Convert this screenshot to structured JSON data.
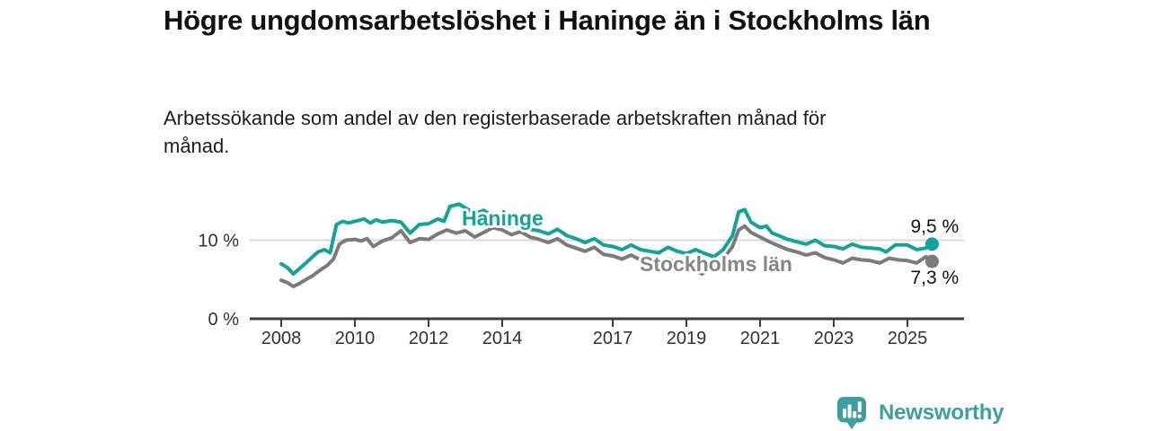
{
  "header": {
    "title": "Högre ungdomsarbetslöshet i Haninge än i Stockholms län",
    "subtitle": "Arbetssökande som andel av den registerbaserade arbetskraften månad för månad."
  },
  "chart_data": {
    "type": "line",
    "title": "Högre ungdomsarbetslöshet i Haninge än i Stockholms län",
    "subtitle": "Arbetssökande som andel av den registerbaserade arbetskraften månad för månad.",
    "unit": "%",
    "grid": "horizontal-only",
    "legend_position": "inline-labels",
    "x_axis": {
      "ticks": [
        2008,
        2010,
        2012,
        2014,
        2017,
        2019,
        2021,
        2023,
        2025
      ],
      "range": [
        2008,
        2025.7
      ]
    },
    "y_axis": {
      "ticks": [
        {
          "value": 0,
          "label": "0 %"
        },
        {
          "value": 10,
          "label": "10 %"
        }
      ],
      "range": [
        0,
        15
      ],
      "gridlines": [
        10
      ]
    },
    "colors": {
      "axis": "#3c3c3c",
      "gridline": "#d9d9d9",
      "tick_label": "#333333",
      "value_label": "#111111"
    },
    "series": [
      {
        "name": "Haninge",
        "color": "#15a297",
        "end_value": 9.5,
        "end_label": "9,5 %",
        "points": [
          [
            2008.0,
            7.0
          ],
          [
            2008.17,
            6.5
          ],
          [
            2008.33,
            5.7
          ],
          [
            2008.5,
            6.4
          ],
          [
            2008.67,
            7.1
          ],
          [
            2008.83,
            7.8
          ],
          [
            2009.0,
            8.5
          ],
          [
            2009.17,
            8.8
          ],
          [
            2009.33,
            8.4
          ],
          [
            2009.5,
            12.0
          ],
          [
            2009.67,
            12.4
          ],
          [
            2009.83,
            12.2
          ],
          [
            2010.0,
            12.4
          ],
          [
            2010.25,
            12.7
          ],
          [
            2010.42,
            12.2
          ],
          [
            2010.58,
            12.6
          ],
          [
            2010.75,
            12.3
          ],
          [
            2011.0,
            12.5
          ],
          [
            2011.25,
            12.3
          ],
          [
            2011.5,
            10.9
          ],
          [
            2011.75,
            12.0
          ],
          [
            2012.0,
            12.1
          ],
          [
            2012.25,
            12.7
          ],
          [
            2012.42,
            12.4
          ],
          [
            2012.58,
            14.3
          ],
          [
            2012.83,
            14.6
          ],
          [
            2013.0,
            14.1
          ],
          [
            2013.25,
            13.4
          ],
          [
            2013.5,
            13.8
          ],
          [
            2013.75,
            13.0
          ],
          [
            2014.0,
            12.4
          ],
          [
            2014.25,
            11.8
          ],
          [
            2014.5,
            12.2
          ],
          [
            2014.75,
            11.4
          ],
          [
            2015.0,
            11.2
          ],
          [
            2015.25,
            10.8
          ],
          [
            2015.5,
            11.4
          ],
          [
            2015.75,
            10.6
          ],
          [
            2016.0,
            10.2
          ],
          [
            2016.25,
            9.7
          ],
          [
            2016.5,
            10.2
          ],
          [
            2016.75,
            9.4
          ],
          [
            2017.0,
            9.2
          ],
          [
            2017.25,
            8.8
          ],
          [
            2017.5,
            9.4
          ],
          [
            2017.75,
            8.8
          ],
          [
            2018.0,
            8.6
          ],
          [
            2018.25,
            8.4
          ],
          [
            2018.5,
            9.1
          ],
          [
            2018.75,
            8.6
          ],
          [
            2019.0,
            8.3
          ],
          [
            2019.25,
            8.8
          ],
          [
            2019.5,
            8.3
          ],
          [
            2019.75,
            7.9
          ],
          [
            2020.0,
            8.8
          ],
          [
            2020.25,
            10.6
          ],
          [
            2020.42,
            13.6
          ],
          [
            2020.58,
            13.9
          ],
          [
            2020.75,
            12.3
          ],
          [
            2021.0,
            11.6
          ],
          [
            2021.17,
            11.8
          ],
          [
            2021.33,
            10.9
          ],
          [
            2021.5,
            10.6
          ],
          [
            2021.75,
            10.1
          ],
          [
            2022.0,
            9.8
          ],
          [
            2022.25,
            9.5
          ],
          [
            2022.5,
            10.0
          ],
          [
            2022.75,
            9.3
          ],
          [
            2023.0,
            9.2
          ],
          [
            2023.25,
            8.9
          ],
          [
            2023.5,
            9.5
          ],
          [
            2023.75,
            9.1
          ],
          [
            2024.0,
            9.0
          ],
          [
            2024.25,
            8.9
          ],
          [
            2024.42,
            8.5
          ],
          [
            2024.67,
            9.4
          ],
          [
            2025.0,
            9.4
          ],
          [
            2025.25,
            8.8
          ],
          [
            2025.5,
            9.0
          ],
          [
            2025.67,
            9.5
          ]
        ]
      },
      {
        "name": "Stockholms län",
        "color": "#7b7b7b",
        "label_color": "#868686",
        "end_value": 7.3,
        "end_label": "7,3 %",
        "points": [
          [
            2008.0,
            4.9
          ],
          [
            2008.17,
            4.6
          ],
          [
            2008.33,
            4.1
          ],
          [
            2008.5,
            4.5
          ],
          [
            2008.67,
            5.0
          ],
          [
            2008.83,
            5.4
          ],
          [
            2009.0,
            6.0
          ],
          [
            2009.25,
            6.8
          ],
          [
            2009.42,
            7.6
          ],
          [
            2009.58,
            9.5
          ],
          [
            2009.75,
            10.0
          ],
          [
            2010.0,
            10.1
          ],
          [
            2010.17,
            9.9
          ],
          [
            2010.33,
            10.2
          ],
          [
            2010.5,
            9.2
          ],
          [
            2010.75,
            9.9
          ],
          [
            2011.0,
            10.3
          ],
          [
            2011.25,
            11.2
          ],
          [
            2011.5,
            9.7
          ],
          [
            2011.75,
            10.2
          ],
          [
            2012.0,
            10.1
          ],
          [
            2012.25,
            10.8
          ],
          [
            2012.5,
            11.3
          ],
          [
            2012.75,
            10.9
          ],
          [
            2013.0,
            11.2
          ],
          [
            2013.25,
            10.4
          ],
          [
            2013.5,
            11.0
          ],
          [
            2013.75,
            11.6
          ],
          [
            2014.0,
            11.3
          ],
          [
            2014.25,
            10.7
          ],
          [
            2014.5,
            11.1
          ],
          [
            2014.75,
            10.4
          ],
          [
            2015.0,
            10.1
          ],
          [
            2015.25,
            9.7
          ],
          [
            2015.5,
            10.2
          ],
          [
            2015.75,
            9.4
          ],
          [
            2016.0,
            9.0
          ],
          [
            2016.25,
            8.6
          ],
          [
            2016.5,
            9.1
          ],
          [
            2016.75,
            8.2
          ],
          [
            2017.0,
            8.0
          ],
          [
            2017.25,
            7.6
          ],
          [
            2017.5,
            8.1
          ],
          [
            2017.75,
            7.5
          ],
          [
            2018.0,
            7.3
          ],
          [
            2018.25,
            7.0
          ],
          [
            2018.5,
            7.6
          ],
          [
            2018.75,
            7.1
          ],
          [
            2019.0,
            6.8
          ],
          [
            2019.25,
            6.2
          ],
          [
            2019.42,
            5.7
          ],
          [
            2019.58,
            6.2
          ],
          [
            2019.75,
            6.8
          ],
          [
            2020.0,
            7.6
          ],
          [
            2020.25,
            9.2
          ],
          [
            2020.42,
            11.3
          ],
          [
            2020.58,
            11.8
          ],
          [
            2020.75,
            11.0
          ],
          [
            2021.0,
            10.4
          ],
          [
            2021.25,
            9.8
          ],
          [
            2021.5,
            9.3
          ],
          [
            2021.75,
            8.8
          ],
          [
            2022.0,
            8.5
          ],
          [
            2022.25,
            8.1
          ],
          [
            2022.5,
            8.4
          ],
          [
            2022.75,
            7.8
          ],
          [
            2023.0,
            7.5
          ],
          [
            2023.25,
            7.1
          ],
          [
            2023.5,
            7.7
          ],
          [
            2023.75,
            7.5
          ],
          [
            2024.0,
            7.4
          ],
          [
            2024.25,
            7.1
          ],
          [
            2024.5,
            7.7
          ],
          [
            2024.75,
            7.5
          ],
          [
            2025.0,
            7.4
          ],
          [
            2025.25,
            7.1
          ],
          [
            2025.5,
            7.9
          ],
          [
            2025.67,
            7.3
          ]
        ]
      }
    ]
  },
  "footer": {
    "brand": "Newsworthy",
    "brand_color": "#3f9e9e",
    "logo_icon": "bar-chart-speech-bubble-icon"
  }
}
